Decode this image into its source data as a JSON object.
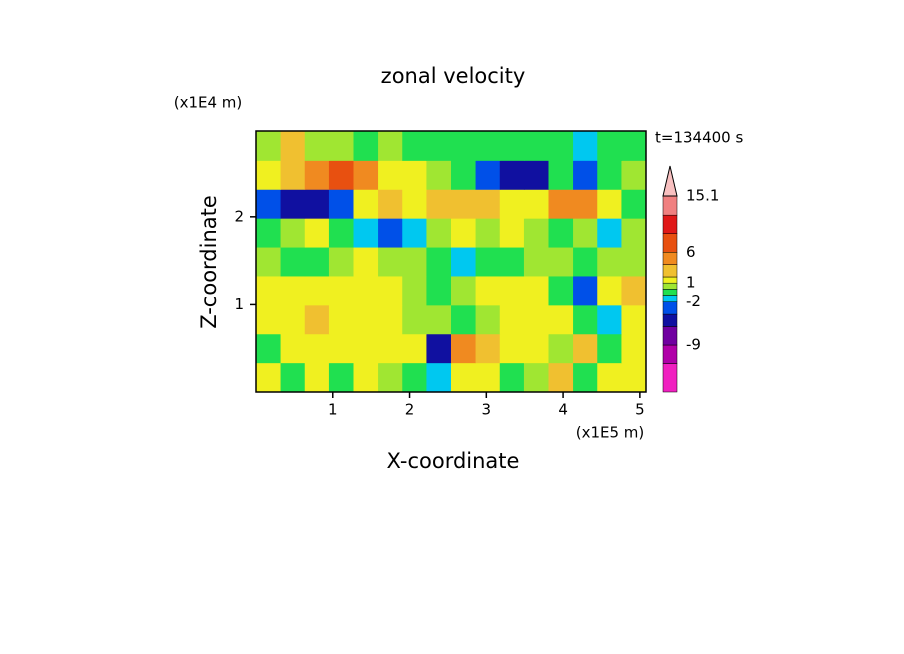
{
  "chart_data": {
    "type": "contour",
    "title": "zonal velocity",
    "x_label": "X-coordinate",
    "y_label": "Z-coordinate",
    "x_unit_label": "(x1E5 m)",
    "y_unit_label": "(x1E4 m)",
    "time_label": "t=134400 s",
    "xlim": [
      0,
      5.08
    ],
    "ylim": [
      0,
      2.98
    ],
    "xticks": [
      1,
      2,
      3,
      4,
      5
    ],
    "yticks": [
      1,
      2
    ],
    "x": [
      0.16,
      0.48,
      0.79,
      1.11,
      1.43,
      1.75,
      2.06,
      2.38,
      2.7,
      3.02,
      3.33,
      3.65,
      3.97,
      4.29,
      4.6,
      4.92
    ],
    "y": [
      0.17,
      0.5,
      0.83,
      1.16,
      1.49,
      1.82,
      2.15,
      2.48,
      2.81
    ],
    "z": [
      [
        1,
        -0.5,
        1,
        -0.5,
        1,
        0.5,
        -0.5,
        -2,
        1,
        1,
        -0.5,
        0.5,
        3,
        -0.5,
        1.5,
        1
      ],
      [
        -0.5,
        1.5,
        1.5,
        1.5,
        1,
        1,
        1,
        -5,
        4,
        2,
        1,
        1,
        0.5,
        3,
        -1,
        1
      ],
      [
        1.5,
        1,
        3,
        1.5,
        1.5,
        1,
        0,
        0.5,
        -0.5,
        0,
        1,
        1.5,
        1.5,
        -1,
        -2,
        1
      ],
      [
        1.5,
        1.5,
        1.5,
        1.5,
        1.5,
        1.5,
        0,
        -0.5,
        0.5,
        1,
        1.5,
        1.5,
        -1,
        -3,
        1,
        2
      ],
      [
        0.5,
        -0.5,
        -0.5,
        0,
        1,
        0.5,
        0,
        -0.5,
        -1.5,
        -1,
        -0.5,
        0,
        0.5,
        -1,
        0.5,
        0.5
      ],
      [
        -0.5,
        0,
        1,
        -0.5,
        -2,
        -3,
        -2,
        0.5,
        1,
        0.5,
        1,
        0.5,
        -1,
        0,
        -2,
        0.5
      ],
      [
        -4,
        -5,
        -6,
        -3,
        1,
        3,
        1.5,
        2,
        3,
        2,
        1,
        1.5,
        5,
        4,
        1,
        -1
      ],
      [
        1.5,
        2,
        5,
        6,
        4,
        1.5,
        1,
        0.5,
        -0.5,
        -4,
        -6,
        -5,
        -1,
        -4,
        -1,
        0.5
      ],
      [
        0.5,
        2,
        0.5,
        0.5,
        -0.5,
        0.5,
        -0.5,
        -0.5,
        -0.5,
        -0.5,
        -1,
        -1,
        -0.5,
        -1.5,
        -0.5,
        -0.5
      ]
    ],
    "colorbar": {
      "clim": [
        -16.6,
        15.1
      ],
      "levels": [
        -12,
        -9,
        -6,
        -4,
        -2,
        -1,
        0,
        1,
        2,
        4,
        6,
        9,
        12,
        15.1
      ],
      "colors": [
        "#f020c0",
        "#b000a8",
        "#7000a0",
        "#1010a0",
        "#0050e8",
        "#00c8f0",
        "#20e050",
        "#a0e632",
        "#f0f020",
        "#f0c030",
        "#f08a20",
        "#e85010",
        "#e01818",
        "#f08080",
        "#f8c0c0"
      ],
      "ticks": [
        15.1,
        6,
        1,
        -2,
        -9
      ]
    }
  }
}
